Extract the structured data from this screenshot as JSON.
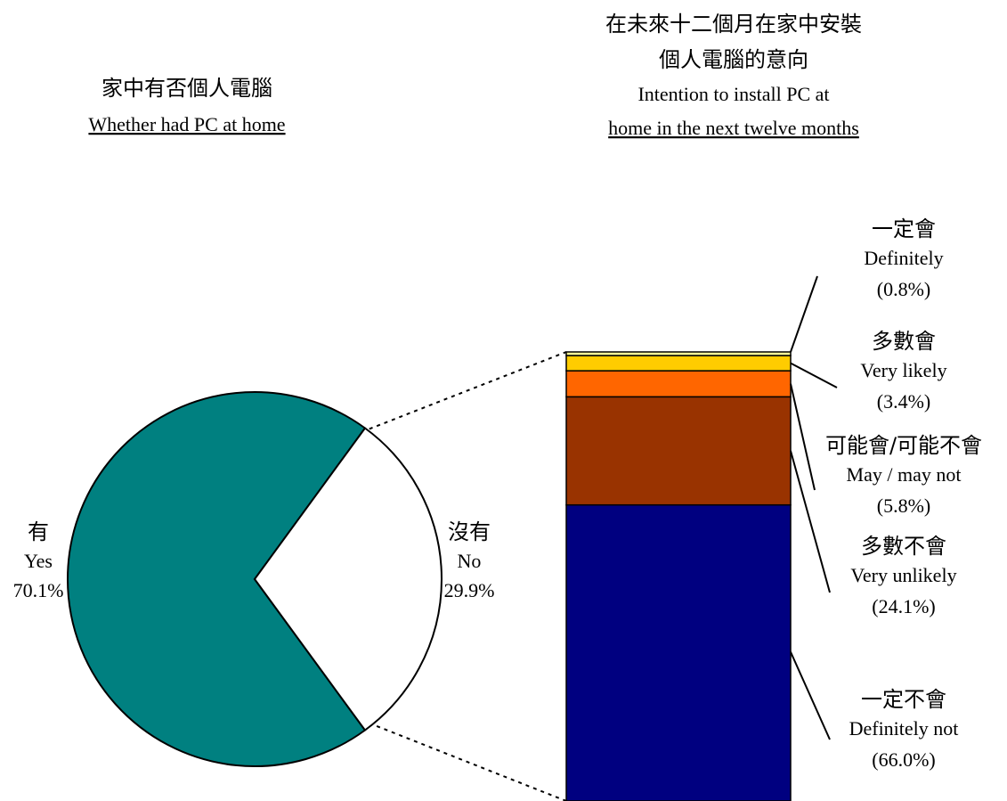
{
  "chart_data": [
    {
      "type": "pie",
      "title_zh": "家中有否個人電腦",
      "title": "Whether had PC at home",
      "categories_zh": [
        "有",
        "沒有"
      ],
      "categories": [
        "Yes",
        "No"
      ],
      "values": [
        70.1,
        29.9
      ],
      "value_labels": [
        "70.1%",
        "29.9%"
      ],
      "colors": [
        "#008080",
        "#ffffff"
      ]
    },
    {
      "type": "stacked-bar",
      "title_zh": [
        "在未來十二個月在家中安裝",
        "個人電腦的意向"
      ],
      "title": [
        "Intention to install PC at",
        "home in the next twelve months"
      ],
      "categories_zh": [
        "一定不會",
        "多數不會",
        "可能會/可能不會",
        "多數會",
        "一定會"
      ],
      "categories": [
        "Definitely not",
        "Very unlikely",
        "May / may not",
        "Very likely",
        "Definitely"
      ],
      "values": [
        66.0,
        24.1,
        5.8,
        3.4,
        0.8
      ],
      "value_labels": [
        "(66.0%)",
        "(24.1%)",
        "(5.8%)",
        "(3.4%)",
        "(0.8%)"
      ],
      "colors": [
        "#000080",
        "#993300",
        "#ff6600",
        "#ffcc00",
        "#ffff99"
      ]
    }
  ]
}
